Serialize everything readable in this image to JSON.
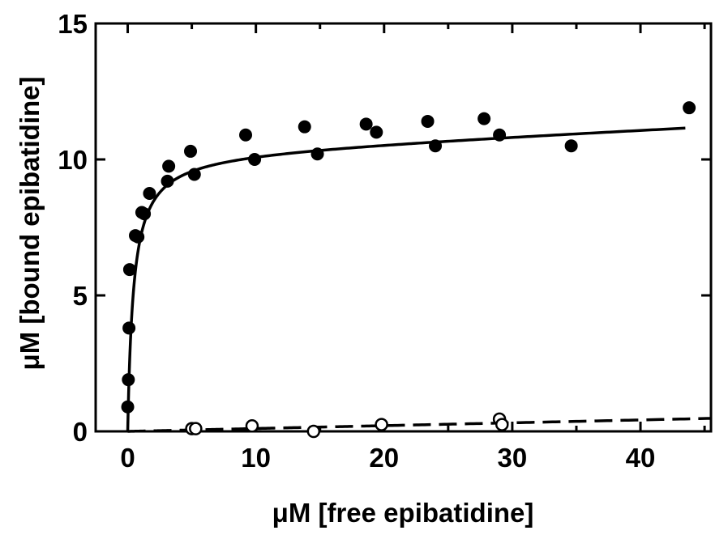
{
  "chart_data": {
    "type": "scatter",
    "xlabel": "μM [free epibatidine]",
    "ylabel": "μM [bound epibatidine]",
    "xlim": [
      -2.5,
      45.5
    ],
    "ylim": [
      0,
      15
    ],
    "xticks": [
      0,
      10,
      20,
      30,
      40
    ],
    "yticks": [
      0,
      5,
      10,
      15
    ],
    "grid": false,
    "colors": {
      "ink": "#000000",
      "hollow": "#ffffff"
    },
    "series": [
      {
        "marker": "filled-circle",
        "points": [
          [
            0.0,
            0.9
          ],
          [
            0.05,
            1.9
          ],
          [
            0.1,
            3.8
          ],
          [
            0.15,
            5.95
          ],
          [
            0.6,
            7.2
          ],
          [
            0.8,
            7.15
          ],
          [
            1.1,
            8.05
          ],
          [
            1.3,
            8.0
          ],
          [
            1.7,
            8.75
          ],
          [
            3.1,
            9.2
          ],
          [
            3.2,
            9.75
          ],
          [
            4.9,
            10.3
          ],
          [
            5.2,
            9.45
          ],
          [
            9.2,
            10.9
          ],
          [
            9.9,
            10.0
          ],
          [
            13.8,
            11.2
          ],
          [
            14.8,
            10.2
          ],
          [
            18.6,
            11.3
          ],
          [
            19.4,
            11.0
          ],
          [
            23.4,
            11.4
          ],
          [
            24.0,
            10.5
          ],
          [
            27.8,
            11.5
          ],
          [
            29.0,
            10.9
          ],
          [
            34.6,
            10.5
          ],
          [
            43.8,
            11.9
          ]
        ]
      },
      {
        "marker": "open-circle",
        "points": [
          [
            5.0,
            0.1
          ],
          [
            5.3,
            0.1
          ],
          [
            9.7,
            0.2
          ],
          [
            14.5,
            0.0
          ],
          [
            19.8,
            0.25
          ],
          [
            29.0,
            0.45
          ],
          [
            29.2,
            0.25
          ]
        ]
      }
    ],
    "fits": [
      {
        "style": "solid",
        "model": "hyperbolic-plus-linear",
        "bmax": 10.3,
        "kd": 0.45,
        "ns": 0.022,
        "x_range": [
          0,
          43.5
        ]
      },
      {
        "style": "dashed",
        "model": "linear",
        "slope": 0.0105,
        "intercept": 0.0,
        "x_range": [
          0,
          45.5
        ]
      }
    ]
  }
}
